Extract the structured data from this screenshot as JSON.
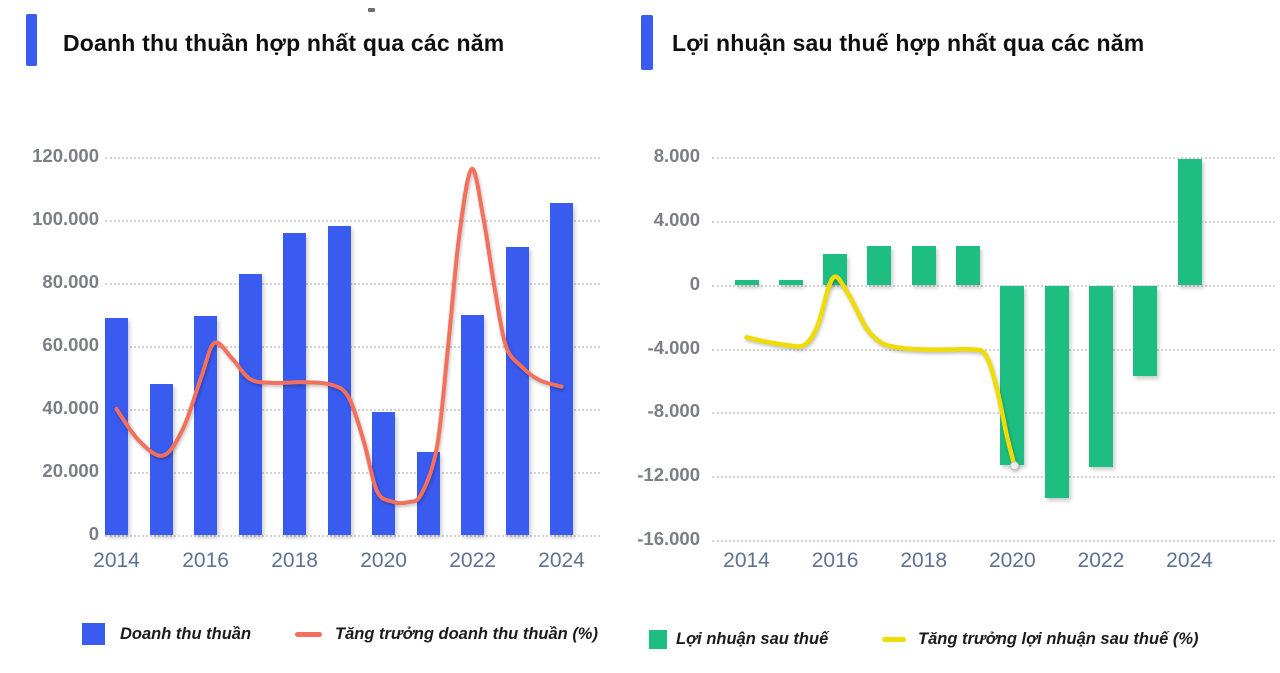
{
  "charts": [
    {
      "title": "Doanh thu thuần hợp nhất qua các năm",
      "colors": {
        "accent": "#3A5BF0",
        "bar": "#3A5BF0",
        "line": "#F4705B"
      },
      "legend": {
        "bar": "Doanh thu thuần",
        "line": "Tăng trưởng doanh thu thuần (%)"
      },
      "chart_data": {
        "type": "bar+line combo",
        "categories": [
          "2014",
          "2015",
          "2016",
          "2017",
          "2018",
          "2019",
          "2020",
          "2021",
          "2022",
          "2023",
          "2024"
        ],
        "x_tick_labels": [
          "2014",
          "2016",
          "2018",
          "2020",
          "2022",
          "2024"
        ],
        "ylim": [
          0,
          120000
        ],
        "grid": "dotted horizontal gridlines, no vertical axis lines",
        "legend_position": "bottom",
        "y_ticks": [
          {
            "label": "120.000",
            "value": 120000
          },
          {
            "label": "100.000",
            "value": 100000
          },
          {
            "label": "80.000",
            "value": 80000
          },
          {
            "label": "60.000",
            "value": 60000
          },
          {
            "label": "40.000",
            "value": 40000
          },
          {
            "label": "20.000",
            "value": 20000
          },
          {
            "label": "0",
            "value": 0
          }
        ],
        "series": [
          {
            "name": "Doanh thu thuần",
            "type": "bar",
            "values": [
              69000,
              48000,
              69500,
              83000,
              96000,
              98000,
              39000,
              26500,
              70000,
              91500,
              105500
            ]
          },
          {
            "name": "Tăng trưởng doanh thu thuần (%)",
            "type": "line",
            "axis_note": "growth % plotted on hidden secondary axis; points given as [year, left-axis-equivalent position]",
            "end_marker": false,
            "points": [
              [
                2014.0,
                40000
              ],
              [
                2014.5,
                30000
              ],
              [
                2015.05,
                25200
              ],
              [
                2015.5,
                34000
              ],
              [
                2015.9,
                50000
              ],
              [
                2016.2,
                61000
              ],
              [
                2016.6,
                56000
              ],
              [
                2017.0,
                49500
              ],
              [
                2017.5,
                48300
              ],
              [
                2018.2,
                48500
              ],
              [
                2018.8,
                47800
              ],
              [
                2019.2,
                44000
              ],
              [
                2019.55,
                30000
              ],
              [
                2019.85,
                14000
              ],
              [
                2020.2,
                10600
              ],
              [
                2020.55,
                10400
              ],
              [
                2020.85,
                13000
              ],
              [
                2021.2,
                28000
              ],
              [
                2021.45,
                60000
              ],
              [
                2021.7,
                95000
              ],
              [
                2021.98,
                116200
              ],
              [
                2022.25,
                100000
              ],
              [
                2022.5,
                78000
              ],
              [
                2022.75,
                60000
              ],
              [
                2023.1,
                53500
              ],
              [
                2023.5,
                49200
              ],
              [
                2024.0,
                47100
              ]
            ]
          }
        ]
      }
    },
    {
      "title": "Lợi nhuận sau thuế hợp nhất qua các năm",
      "colors": {
        "accent": "#3A5BF0",
        "bar": "#1EBE82",
        "line": "#F0DB05"
      },
      "legend": {
        "bar": "Lợi nhuận sau thuế",
        "line": "Tăng trưởng lợi nhuận sau thuế (%)"
      },
      "chart_data": {
        "type": "bar+line combo",
        "categories": [
          "2014",
          "2015",
          "2016",
          "2017",
          "2018",
          "2019",
          "2020",
          "2021",
          "2022",
          "2023",
          "2024"
        ],
        "x_tick_labels": [
          "2014",
          "2016",
          "2018",
          "2020",
          "2022",
          "2024"
        ],
        "ylim": [
          -16000,
          8000
        ],
        "grid": "dotted horizontal gridlines, no vertical axis lines",
        "legend_position": "bottom",
        "y_ticks": [
          {
            "label": "8.000",
            "value": 8000
          },
          {
            "label": "4.000",
            "value": 4000
          },
          {
            "label": "0",
            "value": 0
          },
          {
            "label": "-4.000",
            "value": -4000
          },
          {
            "label": "-8.000",
            "value": -8000
          },
          {
            "label": "-12.000",
            "value": -12000
          },
          {
            "label": "-16.000",
            "value": -16000
          }
        ],
        "series": [
          {
            "name": "Lợi nhuận sau thuế",
            "type": "bar",
            "values": [
              300,
              300,
              1950,
              2450,
              2400,
              2400,
              -11300,
              -13350,
              -11400,
              -5700,
              7850
            ]
          },
          {
            "name": "Tăng trưởng lợi nhuận sau thuế (%)",
            "type": "line",
            "axis_note": "growth % plotted on hidden secondary axis; line ends at 2020 with a small gray dot; points given as [year, left-axis-equivalent position]",
            "end_marker": true,
            "points": [
              [
                2014.0,
                -3300
              ],
              [
                2014.45,
                -3580
              ],
              [
                2014.9,
                -3780
              ],
              [
                2015.3,
                -3780
              ],
              [
                2015.6,
                -2600
              ],
              [
                2015.95,
                420
              ],
              [
                2016.3,
                -600
              ],
              [
                2016.7,
                -2700
              ],
              [
                2017.05,
                -3650
              ],
              [
                2017.45,
                -3950
              ],
              [
                2018.0,
                -4060
              ],
              [
                2018.6,
                -4060
              ],
              [
                2019.1,
                -4060
              ],
              [
                2019.4,
                -4400
              ],
              [
                2019.65,
                -6500
              ],
              [
                2019.88,
                -9500
              ],
              [
                2020.05,
                -11350
              ]
            ]
          }
        ]
      }
    }
  ]
}
